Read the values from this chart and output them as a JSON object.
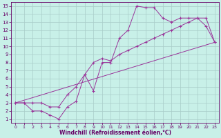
{
  "xlabel": "Windchill (Refroidissement éolien,°C)",
  "bg_color": "#c8f0e8",
  "line_color": "#993399",
  "grid_color": "#a8ccc8",
  "xlim": [
    -0.5,
    23.5
  ],
  "ylim": [
    0.5,
    15.5
  ],
  "xticks": [
    0,
    1,
    2,
    3,
    4,
    5,
    6,
    7,
    8,
    9,
    10,
    11,
    12,
    13,
    14,
    15,
    16,
    17,
    18,
    19,
    20,
    21,
    22,
    23
  ],
  "yticks": [
    1,
    2,
    3,
    4,
    5,
    6,
    7,
    8,
    9,
    10,
    11,
    12,
    13,
    14,
    15
  ],
  "line1_x": [
    0,
    1,
    2,
    3,
    4,
    5,
    6,
    7,
    8,
    9,
    10,
    11,
    12,
    13,
    14,
    15,
    16,
    17,
    18,
    19,
    20,
    21,
    22,
    23
  ],
  "line1_y": [
    3.0,
    3.0,
    2.0,
    2.0,
    1.5,
    1.0,
    2.5,
    3.2,
    6.5,
    4.5,
    8.0,
    8.0,
    11.0,
    12.0,
    15.0,
    14.8,
    14.8,
    13.5,
    13.0,
    13.5,
    13.5,
    13.5,
    12.5,
    10.5
  ],
  "line2_x": [
    0,
    1,
    2,
    3,
    4,
    5,
    6,
    7,
    8,
    9,
    10,
    11,
    12,
    13,
    14,
    15,
    16,
    17,
    18,
    19,
    20,
    21,
    22,
    23
  ],
  "line2_y": [
    3.0,
    3.0,
    3.0,
    3.0,
    2.5,
    2.5,
    4.0,
    5.0,
    6.5,
    8.0,
    8.5,
    8.2,
    9.0,
    9.5,
    10.0,
    10.5,
    11.0,
    11.5,
    12.0,
    12.5,
    13.0,
    13.5,
    13.5,
    10.5
  ],
  "line3_x": [
    0,
    23
  ],
  "line3_y": [
    3.0,
    10.5
  ]
}
